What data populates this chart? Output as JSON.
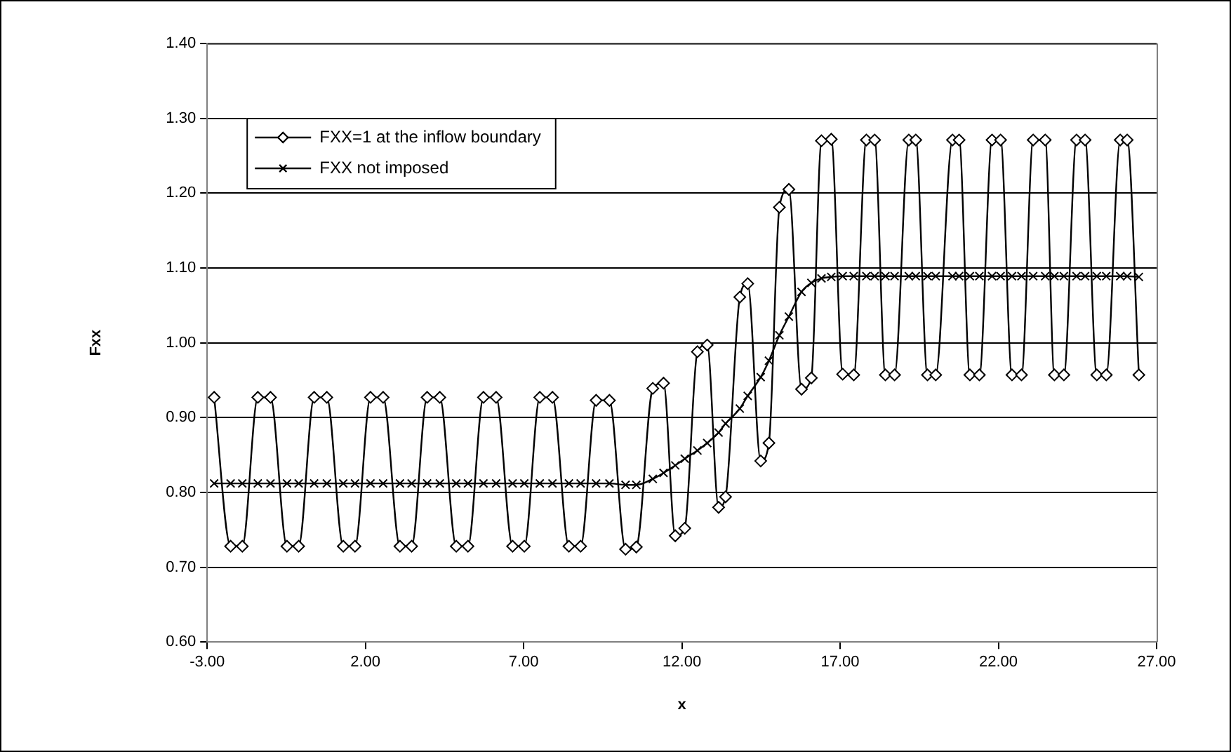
{
  "chart_data": {
    "type": "line",
    "xlabel": "x",
    "ylabel": "Fxx",
    "x": [
      -2.78,
      -2.26,
      -1.89,
      -1.4,
      -1.0,
      -0.48,
      -0.11,
      0.38,
      0.78,
      1.3,
      1.67,
      2.16,
      2.56,
      3.09,
      3.46,
      3.95,
      4.35,
      4.87,
      5.24,
      5.73,
      6.13,
      6.65,
      7.02,
      7.51,
      7.91,
      8.43,
      8.8,
      9.29,
      9.71,
      10.22,
      10.56,
      11.08,
      11.42,
      11.79,
      12.09,
      12.49,
      12.8,
      13.16,
      13.38,
      13.83,
      14.08,
      14.49,
      14.75,
      15.08,
      15.38,
      15.78,
      16.09,
      16.41,
      16.72,
      17.08,
      17.43,
      17.83,
      18.09,
      18.43,
      18.72,
      19.17,
      19.39,
      19.76,
      20.02,
      20.55,
      20.76,
      21.1,
      21.4,
      21.8,
      22.07,
      22.43,
      22.73,
      23.1,
      23.48,
      23.77,
      24.07,
      24.47,
      24.74,
      25.11,
      25.41,
      25.85,
      26.07,
      26.44
    ],
    "series": [
      {
        "name": "FXX=1 at the inflow boundary",
        "color": "#000000",
        "marker": "diamond",
        "values": [
          0.927,
          0.728,
          0.728,
          0.927,
          0.927,
          0.728,
          0.728,
          0.927,
          0.927,
          0.728,
          0.728,
          0.927,
          0.927,
          0.728,
          0.728,
          0.927,
          0.927,
          0.728,
          0.728,
          0.927,
          0.927,
          0.728,
          0.728,
          0.927,
          0.927,
          0.728,
          0.728,
          0.923,
          0.923,
          0.724,
          0.727,
          0.939,
          0.946,
          0.742,
          0.752,
          0.988,
          0.997,
          0.78,
          0.794,
          1.061,
          1.079,
          0.842,
          0.866,
          1.181,
          1.205,
          0.938,
          0.953,
          1.27,
          1.272,
          0.958,
          0.957,
          1.271,
          1.271,
          0.957,
          0.957,
          1.271,
          1.271,
          0.957,
          0.957,
          1.271,
          1.271,
          0.957,
          0.957,
          1.271,
          1.271,
          0.957,
          0.957,
          1.271,
          1.271,
          0.957,
          0.957,
          1.271,
          1.271,
          0.957,
          0.957,
          1.271,
          1.271,
          0.957
        ]
      },
      {
        "name": "FXX not imposed",
        "color": "#000000",
        "marker": "cross",
        "values": [
          0.812,
          0.812,
          0.812,
          0.812,
          0.812,
          0.812,
          0.812,
          0.812,
          0.812,
          0.812,
          0.812,
          0.812,
          0.812,
          0.812,
          0.812,
          0.812,
          0.812,
          0.812,
          0.812,
          0.812,
          0.812,
          0.812,
          0.812,
          0.812,
          0.812,
          0.812,
          0.812,
          0.812,
          0.812,
          0.81,
          0.81,
          0.818,
          0.826,
          0.836,
          0.845,
          0.856,
          0.866,
          0.88,
          0.892,
          0.912,
          0.929,
          0.954,
          0.976,
          1.01,
          1.035,
          1.068,
          1.08,
          1.086,
          1.088,
          1.089,
          1.089,
          1.089,
          1.089,
          1.089,
          1.089,
          1.089,
          1.089,
          1.089,
          1.089,
          1.089,
          1.089,
          1.089,
          1.089,
          1.089,
          1.089,
          1.089,
          1.089,
          1.089,
          1.089,
          1.089,
          1.089,
          1.089,
          1.089,
          1.089,
          1.089,
          1.089,
          1.089,
          1.088
        ]
      }
    ],
    "xlim": [
      -3,
      27
    ],
    "xticks": [
      {
        "value": -3,
        "label": "-3.00"
      },
      {
        "value": 2,
        "label": "2.00"
      },
      {
        "value": 7,
        "label": "7.00"
      },
      {
        "value": 12,
        "label": "12.00"
      },
      {
        "value": 17,
        "label": "17.00"
      },
      {
        "value": 22,
        "label": "22.00"
      },
      {
        "value": 27,
        "label": "27.00"
      }
    ],
    "ylim": [
      0.6,
      1.4
    ],
    "yticks": [
      {
        "value": 0.6,
        "label": "0.60"
      },
      {
        "value": 0.7,
        "label": "0.70"
      },
      {
        "value": 0.8,
        "label": "0.80"
      },
      {
        "value": 0.9,
        "label": "0.90"
      },
      {
        "value": 1.0,
        "label": "1.00"
      },
      {
        "value": 1.1,
        "label": "1.10"
      },
      {
        "value": 1.2,
        "label": "1.20"
      },
      {
        "value": 1.3,
        "label": "1.30"
      },
      {
        "value": 1.4,
        "label": "1.40"
      }
    ],
    "grid": "y",
    "legend": "top left",
    "line_style": "solid"
  }
}
